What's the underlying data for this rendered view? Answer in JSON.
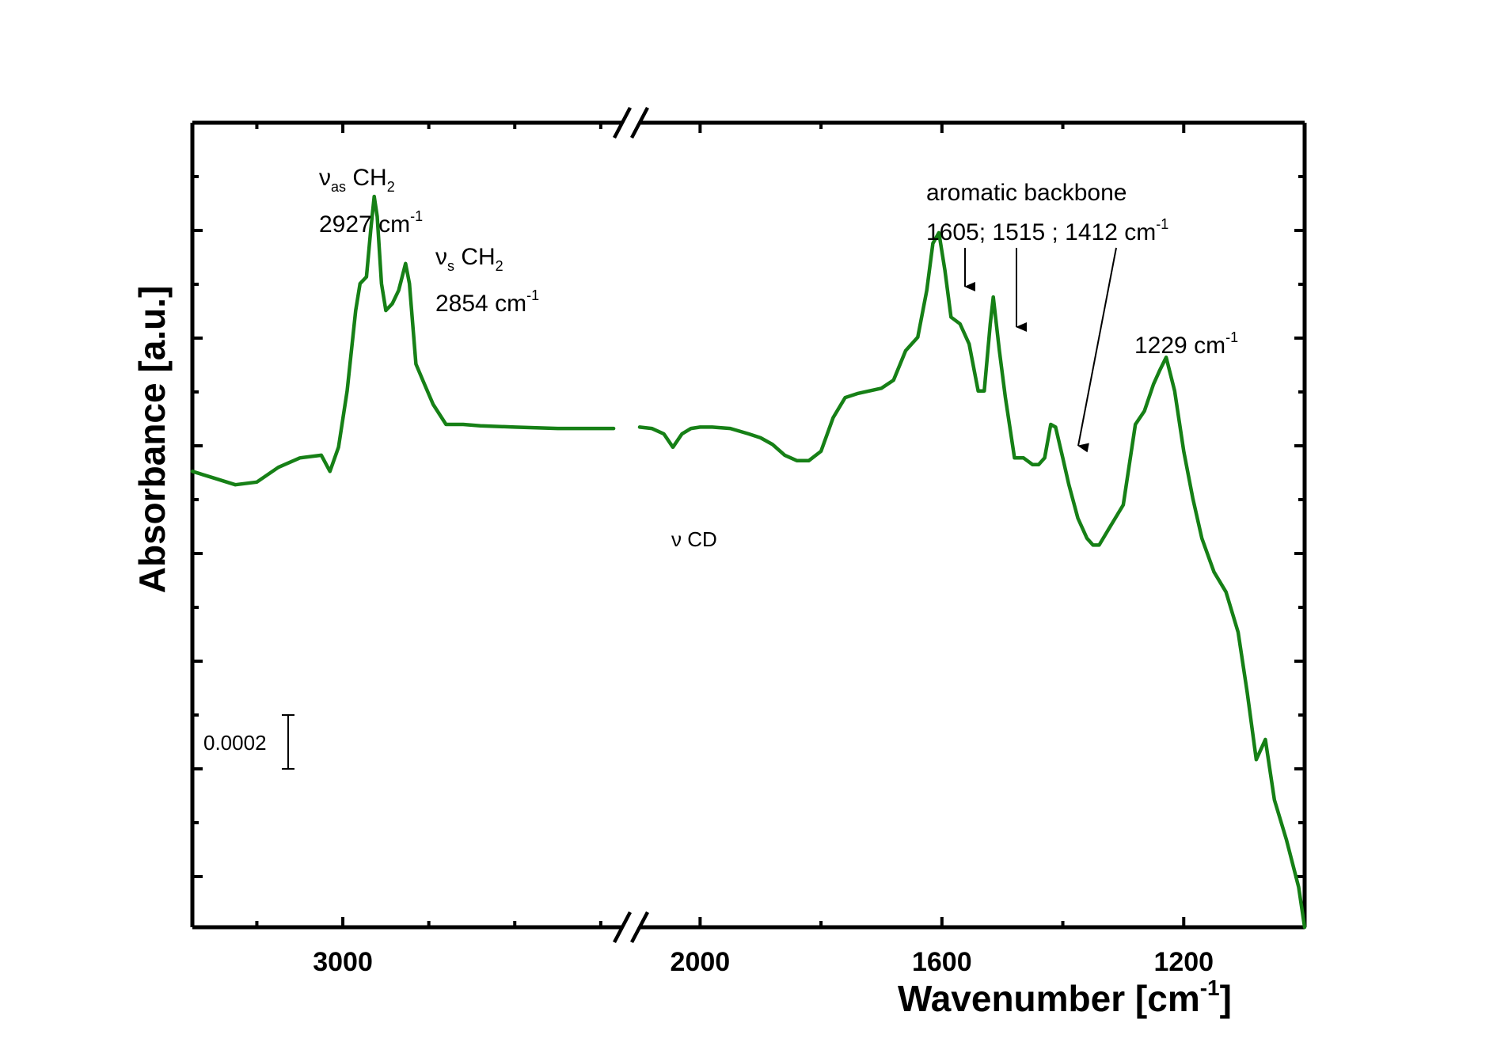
{
  "chart_data": {
    "type": "line",
    "title": "",
    "xlabel": "Wavenumber [cm",
    "xlabel_sup": "-1",
    "xlabel_end": "]",
    "ylabel": "Absorbance [a.u.]",
    "x_reversed": true,
    "x_break": [
      2350,
      2100
    ],
    "x_segments": [
      {
        "xlim": [
          3350,
          2350
        ],
        "ticks": [
          3000
        ]
      },
      {
        "xlim": [
          2100,
          1000
        ],
        "ticks": [
          2000,
          1600,
          1200
        ]
      }
    ],
    "y_ticklabels": "none",
    "scale_bar": {
      "label": "0.0002",
      "value": 0.0002
    },
    "series": [
      {
        "color": "#168016",
        "segments": [
          {
            "x": [
              3350,
              3300,
              3250,
              3200,
              3150,
              3100,
              3050,
              3030,
              3010,
              2990,
              2970,
              2960,
              2945,
              2935,
              2927,
              2920,
              2910,
              2900,
              2885,
              2870,
              2854,
              2845,
              2830,
              2810,
              2790,
              2760,
              2720,
              2680,
              2600,
              2500,
              2420,
              2370
            ],
            "y": [
              0.025,
              0.0245,
              0.024,
              0.0242,
              0.0253,
              0.026,
              0.0262,
              0.025,
              0.0268,
              0.031,
              0.037,
              0.039,
              0.0395,
              0.043,
              0.0455,
              0.044,
              0.039,
              0.037,
              0.0375,
              0.0385,
              0.0405,
              0.039,
              0.033,
              0.0315,
              0.03,
              0.0285,
              0.0285,
              0.0284,
              0.0283,
              0.0282,
              0.0282,
              0.0282
            ]
          },
          {
            "x": [
              2100,
              2080,
              2060,
              2045,
              2030,
              2015,
              2000,
              1980,
              1950,
              1920,
              1900,
              1880,
              1860,
              1840,
              1820,
              1800,
              1780,
              1760,
              1740,
              1720,
              1700,
              1680,
              1660,
              1640,
              1625,
              1615,
              1605,
              1595,
              1585,
              1570,
              1555,
              1540,
              1530,
              1520,
              1515,
              1505,
              1495,
              1480,
              1465,
              1450,
              1440,
              1430,
              1420,
              1412,
              1400,
              1390,
              1375,
              1360,
              1350,
              1340,
              1320,
              1300,
              1280,
              1265,
              1250,
              1240,
              1229,
              1215,
              1200,
              1185,
              1170,
              1150,
              1130,
              1110,
              1095,
              1080,
              1065,
              1050,
              1030,
              1010,
              1000
            ],
            "y": [
              0.0283,
              0.0282,
              0.0278,
              0.0268,
              0.0278,
              0.0282,
              0.0283,
              0.0283,
              0.0282,
              0.0278,
              0.0275,
              0.027,
              0.0262,
              0.0258,
              0.0258,
              0.0265,
              0.029,
              0.0305,
              0.0308,
              0.031,
              0.0312,
              0.0318,
              0.034,
              0.035,
              0.0385,
              0.042,
              0.0428,
              0.04,
              0.0365,
              0.036,
              0.0345,
              0.031,
              0.031,
              0.036,
              0.038,
              0.034,
              0.0305,
              0.026,
              0.026,
              0.0255,
              0.0255,
              0.026,
              0.0285,
              0.0283,
              0.026,
              0.024,
              0.0215,
              0.02,
              0.0195,
              0.0195,
              0.021,
              0.0225,
              0.0285,
              0.0295,
              0.0315,
              0.0325,
              0.0335,
              0.031,
              0.0265,
              0.023,
              0.02,
              0.0175,
              0.016,
              0.013,
              0.0085,
              0.0035,
              0.005,
              0.0005,
              -0.0025,
              -0.006,
              -0.009
            ]
          }
        ]
      }
    ],
    "ylim": [
      -0.009,
      0.051
    ],
    "annotations": [
      {
        "main": "ν",
        "sub": "as",
        "rest": " CH",
        "sub2": "2",
        "line2": "2927 cm",
        "sup": "-1"
      },
      {
        "main": "ν",
        "sub": "s",
        "rest": " CH",
        "sub2": "2",
        "line2": "2854 cm",
        "sup": "-1"
      },
      {
        "line1": "aromatic backbone",
        "line2": "1605; 1515 ; 1412 cm",
        "sup": "-1"
      },
      {
        "line1": "1229 cm",
        "sup": "-1"
      },
      {
        "line1": "ν CD"
      }
    ]
  }
}
